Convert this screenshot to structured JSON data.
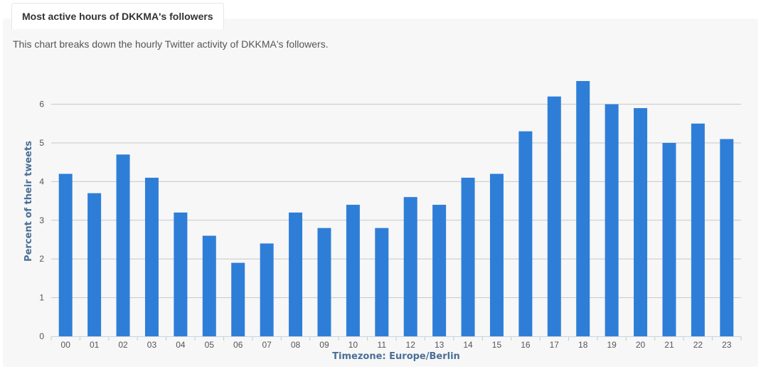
{
  "header": {
    "tab_title": "Most active hours of DKKMA's followers",
    "description": "This chart breaks down the hourly Twitter activity of DKKMA's followers."
  },
  "colors": {
    "bar": "#2e7ed8",
    "grid": "#c8c8c8",
    "axis_title": "#4a6f96"
  },
  "chart_data": {
    "type": "bar",
    "title": "Most active hours of DKKMA's followers",
    "categories": [
      "00",
      "01",
      "02",
      "03",
      "04",
      "05",
      "06",
      "07",
      "08",
      "09",
      "10",
      "11",
      "12",
      "13",
      "14",
      "15",
      "16",
      "17",
      "18",
      "19",
      "20",
      "21",
      "22",
      "23"
    ],
    "values": [
      4.2,
      3.7,
      4.7,
      4.1,
      3.2,
      2.6,
      1.9,
      2.4,
      3.2,
      2.8,
      3.4,
      2.8,
      3.6,
      3.4,
      4.1,
      4.2,
      5.3,
      6.2,
      6.6,
      6.0,
      5.9,
      5.0,
      5.5,
      5.1
    ],
    "xlabel": "Timezone: Europe/Berlin",
    "ylabel": "Percent of their tweets",
    "ylim": [
      0,
      7
    ],
    "yticks": [
      0,
      1,
      2,
      3,
      4,
      5,
      6
    ],
    "grid": true,
    "legend": "none"
  }
}
